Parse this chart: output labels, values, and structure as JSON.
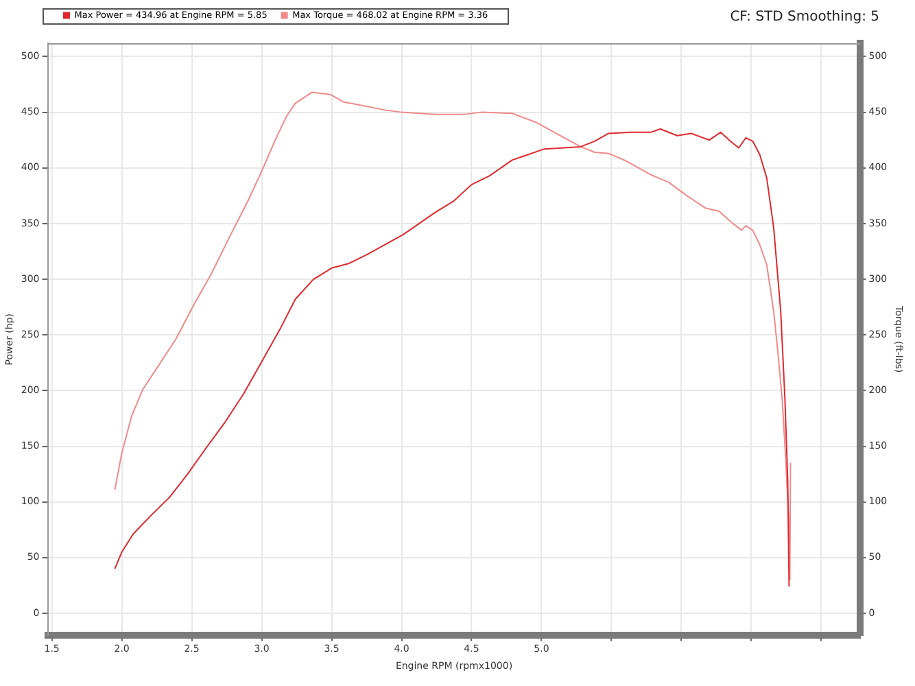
{
  "chart_data": {
    "type": "line",
    "xlabel": "Engine RPM (rpmx1000)",
    "ylabel": "Power (hp)",
    "y2label": "Torque (ft-lbs)",
    "annotations": [
      "CF: STD Smoothing: 5"
    ],
    "series": [
      {
        "name": "Max Power = 434.96 at Engine RPM = 5.85",
        "color": "#e0282e",
        "axis": "y",
        "x": [
          1.95,
          2.0,
          2.08,
          2.21,
          2.34,
          2.47,
          2.6,
          2.74,
          2.87,
          3.0,
          3.13,
          3.24,
          3.37,
          3.5,
          3.62,
          3.75,
          4.01,
          4.24,
          4.37,
          4.5,
          4.63,
          4.79,
          5.02,
          5.28,
          5.38,
          5.48,
          5.64,
          5.78,
          5.85,
          5.97,
          6.07,
          6.2,
          6.28,
          6.35,
          6.41,
          6.46,
          6.51,
          6.56,
          6.61,
          6.66,
          6.71,
          6.74,
          6.76,
          6.77
        ],
        "values": [
          40,
          55,
          71,
          88,
          104,
          125,
          148,
          172,
          197,
          226,
          255,
          282,
          300,
          310,
          314,
          322,
          340,
          360,
          370,
          385,
          393,
          407,
          417,
          419,
          424,
          431,
          432,
          432,
          435,
          429,
          431,
          425,
          432,
          424,
          418,
          427,
          424,
          412,
          391,
          346,
          271,
          193,
          119,
          24
        ]
      },
      {
        "name": "Max Torque = 468.02 at Engine RPM = 3.36",
        "color": "#f08a8a",
        "axis": "y2",
        "x": [
          1.95,
          2.0,
          2.07,
          2.15,
          2.26,
          2.39,
          2.51,
          2.64,
          2.77,
          2.9,
          3.0,
          3.1,
          3.18,
          3.24,
          3.36,
          3.49,
          3.59,
          3.68,
          3.88,
          4.0,
          4.24,
          4.44,
          4.57,
          4.79,
          4.96,
          5.12,
          5.28,
          5.38,
          5.48,
          5.61,
          5.78,
          5.91,
          6.04,
          6.17,
          6.27,
          6.35,
          6.43,
          6.46,
          6.51,
          6.56,
          6.61,
          6.66,
          6.69,
          6.72,
          6.745,
          6.77,
          6.775,
          6.78
        ],
        "values": [
          111,
          144,
          177,
          201,
          222,
          247,
          276,
          305,
          338,
          370,
          397,
          426,
          447,
          458,
          468,
          466,
          459,
          457,
          452,
          450,
          448,
          448,
          450,
          449,
          441,
          430,
          419,
          414,
          413,
          406,
          394,
          387,
          375,
          364,
          361,
          352,
          344,
          348,
          344,
          331,
          313,
          271,
          234,
          193,
          140,
          78,
          30,
          135
        ]
      }
    ],
    "xlim": [
      1.47,
      7.28
    ],
    "xticks": [
      1.5,
      {
        "value": 2,
        "label": "2.0"
      },
      2.5,
      {
        "value": 3,
        "label": "3.0"
      },
      3.5,
      {
        "value": 4,
        "label": "4.0"
      },
      4.5,
      {
        "value": 5,
        "label": "5.0"
      },
      {
        "value": 5.5,
        "label": null
      },
      {
        "value": 6,
        "label": null
      },
      {
        "value": 6.5,
        "label": null
      },
      {
        "value": 7,
        "label": null
      }
    ],
    "ylim": [
      -20,
      512
    ],
    "yticks": [
      0,
      50,
      100,
      150,
      200,
      250,
      300,
      350,
      400,
      450,
      500
    ],
    "y2lim": [
      -20,
      512
    ],
    "y2ticks": [
      0,
      50,
      100,
      150,
      200,
      250,
      300,
      350,
      400,
      450,
      500
    ],
    "grid": true,
    "legend": "top left",
    "marker": "none",
    "line_style": "solid"
  }
}
